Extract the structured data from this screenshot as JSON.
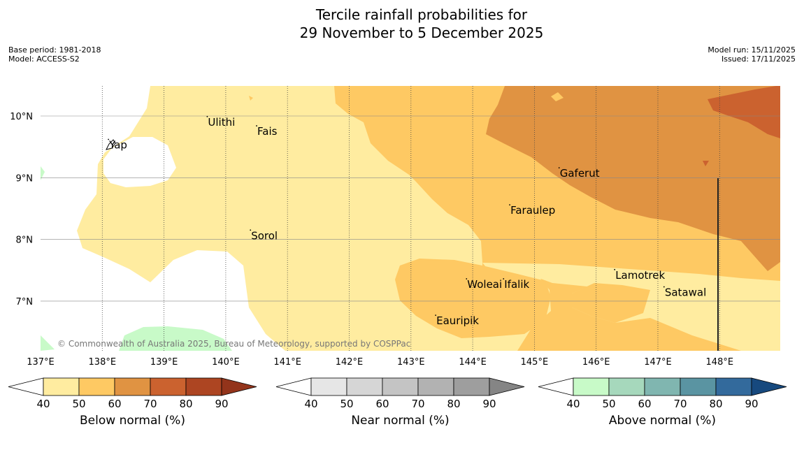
{
  "title": {
    "line1": "Tercile rainfall probabilities for",
    "line2": "29 November to 5 December 2025"
  },
  "meta": {
    "base_period": "Base period: 1981-2018",
    "model": "Model: ACCESS-S2",
    "model_run": "Model run: 15/11/2025",
    "issued": "Issued: 17/11/2025"
  },
  "map": {
    "lon_range": [
      137,
      149
    ],
    "lat_range": [
      6.2,
      10.5
    ],
    "lon_ticks": [
      {
        "value": 137,
        "label": "137°E"
      },
      {
        "value": 138,
        "label": "138°E"
      },
      {
        "value": 139,
        "label": "139°E"
      },
      {
        "value": 140,
        "label": "140°E"
      },
      {
        "value": 141,
        "label": "141°E"
      },
      {
        "value": 142,
        "label": "142°E"
      },
      {
        "value": 143,
        "label": "143°E"
      },
      {
        "value": 144,
        "label": "144°E"
      },
      {
        "value": 145,
        "label": "145°E"
      },
      {
        "value": 146,
        "label": "146°E"
      },
      {
        "value": 147,
        "label": "147°E"
      },
      {
        "value": 148,
        "label": "148°E"
      }
    ],
    "lat_ticks": [
      {
        "value": 10,
        "label": "10°N"
      },
      {
        "value": 9,
        "label": "9°N"
      },
      {
        "value": 8,
        "label": "8°N"
      },
      {
        "value": 7,
        "label": "7°N"
      }
    ],
    "places": [
      {
        "name": "Yap",
        "lon": 138.1,
        "lat": 9.53
      },
      {
        "name": "Ulithi",
        "lon": 139.7,
        "lat": 9.9
      },
      {
        "name": "Fais",
        "lon": 140.5,
        "lat": 9.75
      },
      {
        "name": "Sorol",
        "lon": 140.4,
        "lat": 8.06
      },
      {
        "name": "Gaferut",
        "lon": 145.4,
        "lat": 9.07
      },
      {
        "name": "Faraulep",
        "lon": 144.6,
        "lat": 8.47
      },
      {
        "name": "Woleai",
        "lon": 143.9,
        "lat": 7.27
      },
      {
        "name": "Ifalik",
        "lon": 144.5,
        "lat": 7.27
      },
      {
        "name": "Lamotrek",
        "lon": 146.3,
        "lat": 7.42
      },
      {
        "name": "Satawal",
        "lon": 147.1,
        "lat": 7.14
      },
      {
        "name": "Eauripik",
        "lon": 143.4,
        "lat": 6.68
      }
    ],
    "copyright": "© Commonwealth of Australia 2025, Bureau of Meteorology, supported by COSPPac"
  },
  "colorbars": [
    {
      "title": "Below normal (%)",
      "ticks": [
        "40",
        "50",
        "60",
        "70",
        "80",
        "90"
      ],
      "colors": [
        "#ffeca0",
        "#fec963",
        "#e09342",
        "#cb622f",
        "#ad4522",
        "#93341b"
      ]
    },
    {
      "title": "Near normal (%)",
      "ticks": [
        "40",
        "50",
        "60",
        "70",
        "80",
        "90"
      ],
      "colors": [
        "#e6e6e6",
        "#d6d6d6",
        "#c4c4c4",
        "#b2b2b2",
        "#9e9e9e",
        "#858585"
      ]
    },
    {
      "title": "Above normal (%)",
      "ticks": [
        "40",
        "50",
        "60",
        "70",
        "80",
        "90"
      ],
      "colors": [
        "#c8fac8",
        "#a6d8bc",
        "#80b6b0",
        "#5a94a2",
        "#336a9c",
        "#17497e"
      ]
    }
  ]
}
